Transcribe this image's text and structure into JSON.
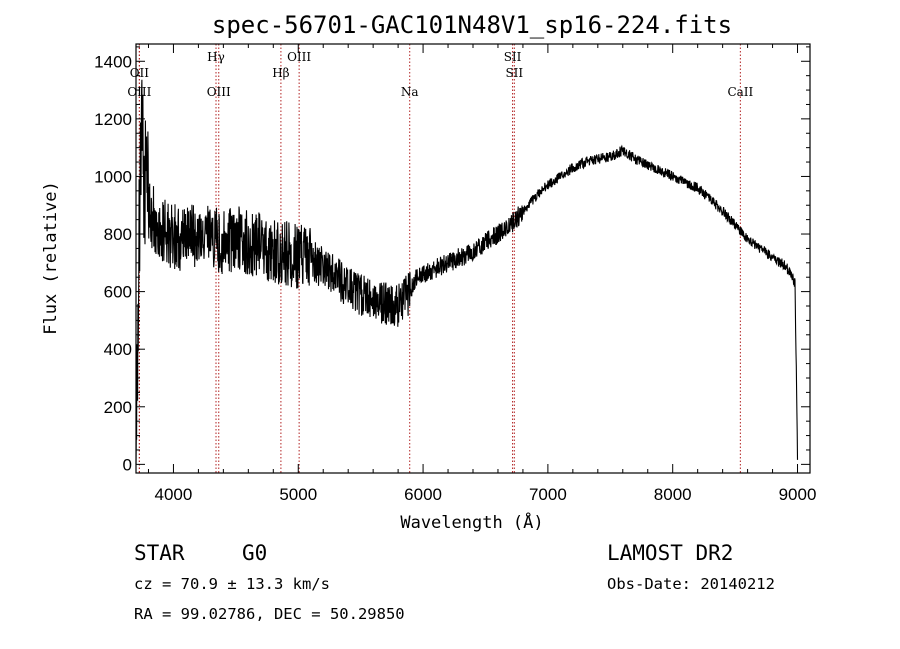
{
  "title": "spec-56701-GAC101N48V1_sp16-224.fits",
  "info": {
    "class_label": "STAR",
    "subclass": "G0",
    "redshift": "cz = 70.9 ± 13.3 km/s",
    "coords": "RA =  99.02786, DEC =  50.29850",
    "survey": "LAMOST DR2",
    "obs_date": "Obs-Date: 20140212"
  },
  "colors": {
    "spectrum": "#000000",
    "line_marker": "#b22222",
    "axes": "#000000"
  },
  "chart_data": {
    "type": "line",
    "title": "spec-56701-GAC101N48V1_sp16-224.fits",
    "xlabel": "Wavelength (Å)",
    "ylabel": "Flux (relative)",
    "xlim": [
      3700,
      9100
    ],
    "ylim": [
      -30,
      1460
    ],
    "x_ticks": [
      4000,
      5000,
      6000,
      7000,
      8000,
      9000
    ],
    "y_ticks": [
      0,
      200,
      400,
      600,
      800,
      1000,
      1200,
      1400
    ],
    "grid": false,
    "spectrum_anchors": {
      "x": [
        3700,
        3720,
        3745,
        3770,
        3800,
        3850,
        3900,
        4000,
        4100,
        4200,
        4300,
        4400,
        4500,
        4600,
        4700,
        4800,
        4900,
        5000,
        5100,
        5200,
        5300,
        5400,
        5500,
        5600,
        5700,
        5800,
        5900,
        5950,
        6000,
        6100,
        6200,
        6300,
        6400,
        6500,
        6600,
        6700,
        6800,
        6900,
        7000,
        7100,
        7200,
        7300,
        7400,
        7500,
        7600,
        7700,
        7800,
        7900,
        8000,
        8100,
        8200,
        8300,
        8400,
        8500,
        8600,
        8700,
        8800,
        8900,
        8950,
        8980,
        9000
      ],
      "y": [
        50,
        700,
        1100,
        1000,
        880,
        850,
        820,
        790,
        780,
        800,
        790,
        770,
        790,
        770,
        760,
        740,
        730,
        720,
        710,
        680,
        650,
        620,
        590,
        570,
        560,
        550,
        600,
        650,
        660,
        680,
        700,
        720,
        740,
        770,
        800,
        830,
        880,
        930,
        970,
        1000,
        1030,
        1050,
        1060,
        1070,
        1090,
        1060,
        1040,
        1020,
        1000,
        980,
        960,
        920,
        880,
        830,
        780,
        750,
        720,
        690,
        660,
        630,
        20
      ]
    },
    "spectral_lines": [
      {
        "label": "OII",
        "wavelength": 3727,
        "row": 1
      },
      {
        "label": "OIII",
        "wavelength": 3727,
        "row": 2
      },
      {
        "label": "Hγ",
        "wavelength": 4341,
        "row": 0
      },
      {
        "label": "OIII",
        "wavelength": 4363,
        "row": 2
      },
      {
        "label": "Hβ",
        "wavelength": 4861,
        "row": 1
      },
      {
        "label": "OIII",
        "wavelength": 5007,
        "row": 0
      },
      {
        "label": "Na",
        "wavelength": 5893,
        "row": 2
      },
      {
        "label": "SII",
        "wavelength": 6717,
        "row": 0
      },
      {
        "label": "SII",
        "wavelength": 6731,
        "row": 1
      },
      {
        "label": "CaII",
        "wavelength": 8542,
        "row": 2
      }
    ]
  }
}
